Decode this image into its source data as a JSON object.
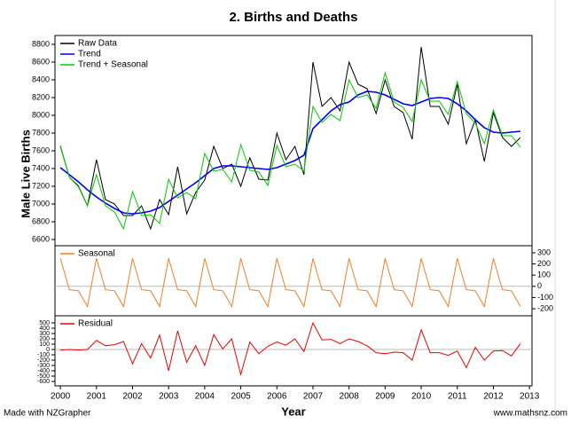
{
  "chart_data": [
    {
      "type": "line",
      "title": "2. Births and Deaths",
      "ylabel": "Male Live Births",
      "legend": "top-left",
      "yaxis_side": "left",
      "xlim": [
        1999.85,
        2013.07
      ],
      "ylim": [
        6530,
        8900
      ],
      "yticks": [
        6600,
        6800,
        7000,
        7200,
        7400,
        7600,
        7800,
        8000,
        8200,
        8400,
        8600,
        8800
      ],
      "x": [
        2000,
        2000.25,
        2000.5,
        2000.75,
        2001,
        2001.25,
        2001.5,
        2001.75,
        2002,
        2002.25,
        2002.5,
        2002.75,
        2003,
        2003.25,
        2003.5,
        2003.75,
        2004,
        2004.25,
        2004.5,
        2004.75,
        2005,
        2005.25,
        2005.5,
        2005.75,
        2006,
        2006.25,
        2006.5,
        2006.75,
        2007,
        2007.25,
        2007.5,
        2007.75,
        2008,
        2008.25,
        2008.5,
        2008.75,
        2009,
        2009.25,
        2009.5,
        2009.75,
        2010,
        2010.25,
        2010.5,
        2010.75,
        2011,
        2011.25,
        2011.5,
        2011.75,
        2012,
        2012.25,
        2012.5,
        2012.75
      ],
      "series": [
        {
          "name": "Raw Data",
          "color": "#000000",
          "values": [
            7650,
            7300,
            7200,
            6980,
            7500,
            7050,
            7000,
            6870,
            6870,
            6980,
            6720,
            7050,
            6880,
            7420,
            6890,
            7130,
            7270,
            7650,
            7400,
            7450,
            7200,
            7520,
            7280,
            7270,
            7800,
            7500,
            7650,
            7330,
            8600,
            8100,
            8200,
            8050,
            8600,
            8350,
            8300,
            8020,
            8400,
            8100,
            8030,
            7730,
            8770,
            8100,
            8100,
            7900,
            8350,
            7680,
            7950,
            7480,
            8030,
            7750,
            7650,
            7750
          ]
        },
        {
          "name": "Trend",
          "color": "#0000ee",
          "values": [
            7410,
            7330,
            7250,
            7160,
            7080,
            7010,
            6950,
            6900,
            6890,
            6900,
            6920,
            6960,
            7030,
            7100,
            7170,
            7240,
            7320,
            7400,
            7430,
            7430,
            7420,
            7410,
            7400,
            7390,
            7410,
            7450,
            7490,
            7550,
            7850,
            7950,
            8050,
            8120,
            8150,
            8230,
            8270,
            8260,
            8230,
            8180,
            8130,
            8110,
            8150,
            8190,
            8200,
            8190,
            8130,
            8050,
            7950,
            7860,
            7810,
            7800,
            7810,
            7820
          ]
        },
        {
          "name": "Trend + Seasonal",
          "color": "#00cc00",
          "values": [
            7660,
            7300,
            7210,
            6980,
            7330,
            6980,
            6910,
            6720,
            7140,
            6870,
            6880,
            6780,
            7280,
            7070,
            7130,
            7060,
            7570,
            7370,
            7390,
            7250,
            7670,
            7380,
            7360,
            7210,
            7660,
            7420,
            7450,
            7370,
            8100,
            7920,
            8010,
            7940,
            8400,
            8200,
            8230,
            8080,
            8480,
            8150,
            8090,
            7930,
            8400,
            8160,
            8160,
            8010,
            8380,
            8020,
            7910,
            7680,
            8060,
            7770,
            7770,
            7640
          ]
        }
      ]
    },
    {
      "type": "line",
      "legend": "top-left",
      "yaxis_side": "right",
      "zero_line": true,
      "xlim": [
        1999.85,
        2013.07
      ],
      "ylim": [
        -263,
        363
      ],
      "yticks": [
        300,
        200,
        100,
        0,
        -100,
        -200
      ],
      "x": [
        2000,
        2000.25,
        2000.5,
        2000.75,
        2001,
        2001.25,
        2001.5,
        2001.75,
        2002,
        2002.25,
        2002.5,
        2002.75,
        2003,
        2003.25,
        2003.5,
        2003.75,
        2004,
        2004.25,
        2004.5,
        2004.75,
        2005,
        2005.25,
        2005.5,
        2005.75,
        2006,
        2006.25,
        2006.5,
        2006.75,
        2007,
        2007.25,
        2007.5,
        2007.75,
        2008,
        2008.25,
        2008.5,
        2008.75,
        2009,
        2009.25,
        2009.5,
        2009.75,
        2010,
        2010.25,
        2010.5,
        2010.75,
        2011,
        2011.25,
        2011.5,
        2011.75,
        2012,
        2012.25,
        2012.5,
        2012.75
      ],
      "series": [
        {
          "name": "Seasonal",
          "color": "#f07f2a",
          "values": [
            250,
            -30,
            -40,
            -180,
            250,
            -30,
            -40,
            -180,
            250,
            -30,
            -40,
            -180,
            250,
            -30,
            -40,
            -180,
            250,
            -30,
            -40,
            -180,
            250,
            -30,
            -40,
            -180,
            250,
            -30,
            -40,
            -180,
            250,
            -30,
            -40,
            -180,
            250,
            -30,
            -40,
            -180,
            250,
            -30,
            -40,
            -180,
            250,
            -30,
            -40,
            -180,
            250,
            -30,
            -40,
            -180,
            250,
            -30,
            -40,
            -180
          ]
        }
      ]
    },
    {
      "type": "line",
      "legend": "top-left",
      "yaxis_side": "left",
      "zero_line": true,
      "xlabel": "Year",
      "xlim": [
        1999.85,
        2013.07
      ],
      "ylim": [
        -683,
        633
      ],
      "yticks": [
        500,
        400,
        300,
        200,
        100,
        0,
        -100,
        -200,
        -300,
        -400,
        -500,
        -600
      ],
      "xticks": [
        2000,
        2001,
        2002,
        2003,
        2004,
        2005,
        2006,
        2007,
        2008,
        2009,
        2010,
        2011,
        2012,
        2013
      ],
      "x": [
        2000,
        2000.25,
        2000.5,
        2000.75,
        2001,
        2001.25,
        2001.5,
        2001.75,
        2002,
        2002.25,
        2002.5,
        2002.75,
        2003,
        2003.25,
        2003.5,
        2003.75,
        2004,
        2004.25,
        2004.5,
        2004.75,
        2005,
        2005.25,
        2005.5,
        2005.75,
        2006,
        2006.25,
        2006.5,
        2006.75,
        2007,
        2007.25,
        2007.5,
        2007.75,
        2008,
        2008.25,
        2008.5,
        2008.75,
        2009,
        2009.25,
        2009.5,
        2009.75,
        2010,
        2010.25,
        2010.5,
        2010.75,
        2011,
        2011.25,
        2011.5,
        2011.75,
        2012,
        2012.25,
        2012.5,
        2012.75
      ],
      "series": [
        {
          "name": "Residual",
          "color": "#ee0000",
          "values": [
            -10,
            0,
            -10,
            0,
            170,
            70,
            90,
            150,
            -270,
            110,
            -160,
            270,
            -400,
            350,
            -240,
            70,
            -300,
            280,
            10,
            200,
            -470,
            140,
            -80,
            60,
            140,
            80,
            200,
            -40,
            500,
            180,
            190,
            110,
            200,
            150,
            70,
            -60,
            -80,
            -50,
            -60,
            -200,
            370,
            -60,
            -60,
            -110,
            -30,
            -340,
            40,
            -200,
            -30,
            -20,
            -120,
            110
          ]
        }
      ]
    }
  ],
  "footer": {
    "left": "Made with NZGrapher",
    "right": "www.mathsnz.com"
  }
}
